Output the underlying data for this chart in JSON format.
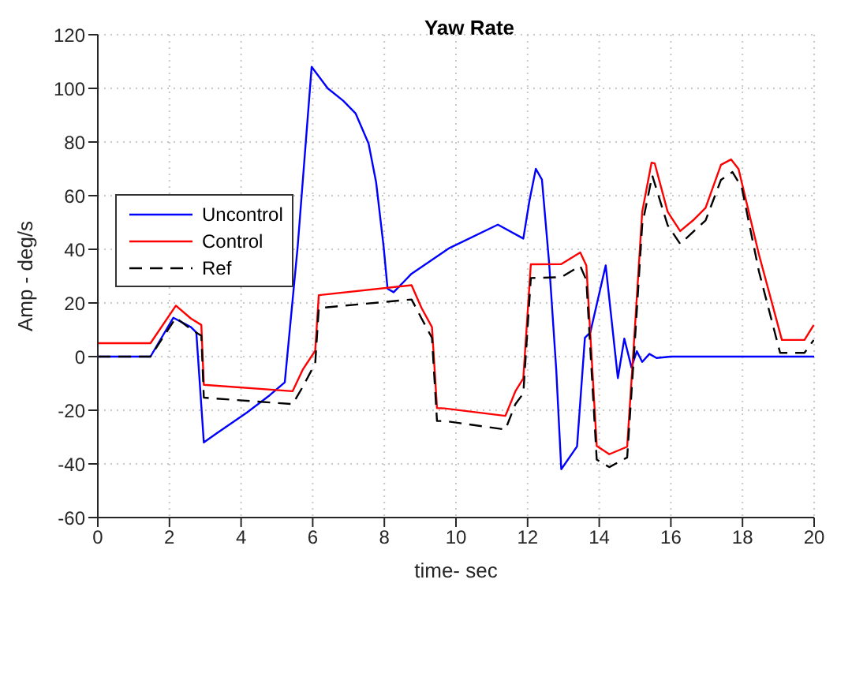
{
  "chart_data": {
    "type": "line",
    "title": "Yaw Rate",
    "xlabel": "time- sec",
    "ylabel": "Amp - deg/s",
    "xlim": [
      0,
      20
    ],
    "xticks": [
      0,
      2,
      4,
      6,
      8,
      10,
      12,
      14,
      16,
      18,
      20
    ],
    "ylim": [
      -60,
      120
    ],
    "yticks": [
      -60,
      -40,
      -20,
      0,
      20,
      40,
      60,
      80,
      100,
      120
    ],
    "grid": true,
    "legend": "left",
    "marker": "none",
    "series": [
      {
        "name": "Uncontrol",
        "color": "#0000ff",
        "line_style": "solid",
        "x": [
          0,
          1.47,
          2.11,
          2.6,
          2.75,
          2.96,
          3.31,
          4.16,
          4.8,
          5.22,
          5.58,
          5.97,
          6.42,
          6.85,
          7.2,
          7.56,
          7.77,
          7.98,
          8.09,
          8.26,
          8.76,
          9.82,
          11.17,
          11.88,
          12.05,
          12.23,
          12.4,
          12.6,
          12.8,
          12.94,
          13.38,
          13.6,
          13.75,
          14.18,
          14.52,
          14.7,
          14.9,
          15.05,
          15.2,
          15.4,
          15.6,
          16,
          20
        ],
        "values": [
          0,
          0,
          14.5,
          11,
          9,
          -32,
          -28.7,
          -20.9,
          -14.4,
          -9.6,
          41,
          108,
          100,
          95.4,
          90.6,
          79.4,
          65,
          41,
          25.3,
          24,
          30.9,
          40.5,
          49.2,
          44,
          58,
          70,
          66,
          35,
          -5,
          -42,
          -33.5,
          7,
          9,
          34,
          -8,
          6.7,
          -4,
          2,
          -2,
          1,
          -0.5,
          0,
          0
        ]
      },
      {
        "name": "Control",
        "color": "#ff0000",
        "line_style": "solid",
        "x": [
          0,
          1.47,
          2.18,
          2.6,
          2.89,
          2.96,
          5.44,
          5.72,
          6.07,
          6.17,
          8.76,
          9.04,
          9.33,
          9.47,
          9.68,
          11.38,
          11.66,
          11.88,
          12.09,
          12.94,
          13.47,
          13.64,
          13.93,
          14.28,
          14.78,
          14.99,
          15.2,
          15.46,
          15.55,
          15.91,
          16.26,
          16.62,
          16.97,
          17.4,
          17.68,
          17.89,
          18.46,
          19.1,
          19.73,
          19.99
        ],
        "values": [
          5,
          5,
          19,
          14.2,
          11.8,
          -10.5,
          -12.9,
          -4.9,
          2.2,
          22.9,
          26.6,
          18.1,
          11,
          -19.2,
          -19.3,
          -22.1,
          -12.9,
          -8.1,
          34.4,
          34.5,
          38.8,
          34,
          -33.3,
          -36.4,
          -33.6,
          9.4,
          54,
          72.3,
          72,
          54,
          46.8,
          50.8,
          55.5,
          71.5,
          73.5,
          69.9,
          38,
          6.2,
          6.2,
          11.8
        ]
      },
      {
        "name": "Ref",
        "color": "#000000",
        "line_style": "dashed",
        "x": [
          0,
          1.47,
          2.18,
          2.6,
          2.89,
          2.96,
          5.44,
          5.72,
          6.07,
          6.17,
          8.76,
          9.04,
          9.33,
          9.47,
          9.68,
          11.38,
          11.66,
          11.88,
          12.09,
          12.94,
          13.47,
          13.64,
          13.93,
          14.28,
          14.78,
          14.99,
          15.2,
          15.48,
          15.91,
          16.26,
          16.97,
          17.4,
          17.72,
          17.98,
          18.46,
          19.05,
          19.73,
          19.99
        ],
        "values": [
          0,
          0,
          14.5,
          10.2,
          7.8,
          -15.3,
          -17.7,
          -11.3,
          -2.5,
          18.1,
          21.3,
          14.2,
          7,
          -24,
          -24,
          -27.2,
          -17.7,
          -13.7,
          29.3,
          29.6,
          33.8,
          28.5,
          -38.4,
          -41.2,
          -37.6,
          4.6,
          49.2,
          67.5,
          49,
          42,
          50.8,
          65.9,
          68.8,
          63,
          31.7,
          1.4,
          1.4,
          6.2
        ]
      }
    ]
  }
}
